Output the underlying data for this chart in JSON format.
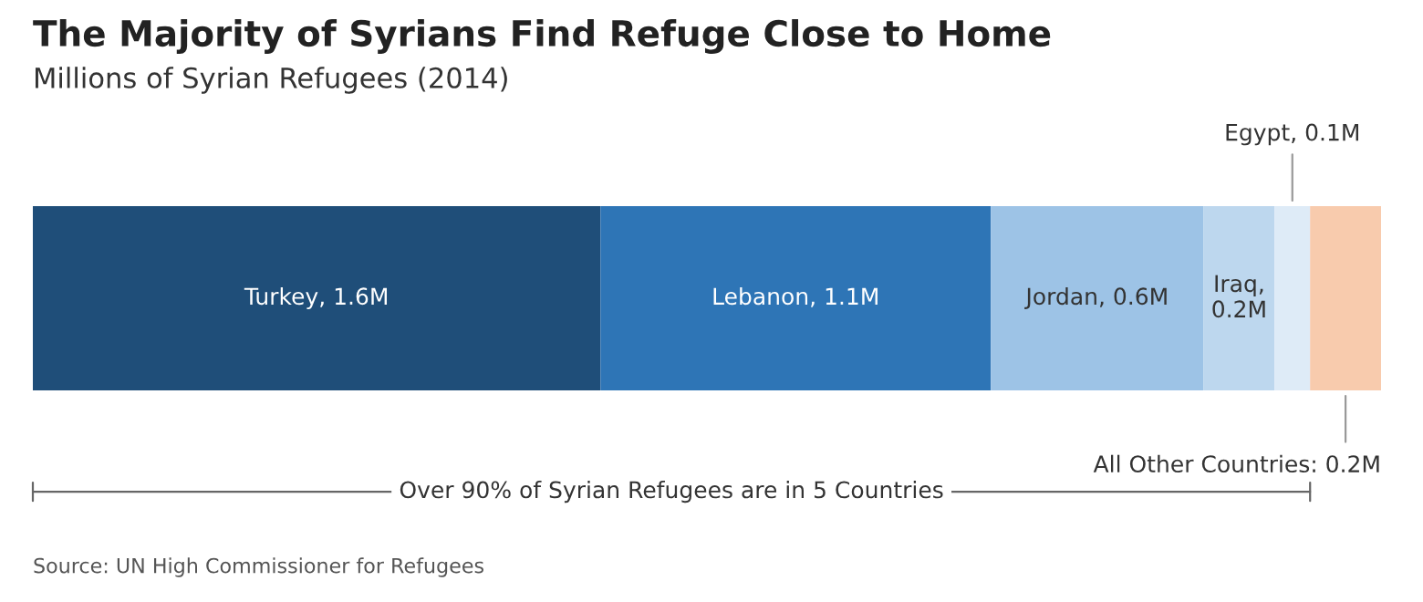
{
  "chart_data": {
    "type": "bar",
    "orientation": "horizontal",
    "stacked": true,
    "title": "The Majority of Syrians Find Refuge Close to Home",
    "subtitle": "Millions of Syrian Refugees (2014)",
    "categories": [
      null
    ],
    "series": [
      {
        "color": "#1f4e79",
        "values": [
          1.6
        ],
        "value_labels": [
          "Turkey, 1.6M"
        ]
      },
      {
        "color": "#2e75b6",
        "values": [
          1.1
        ],
        "value_labels": [
          "Lebanon, 1.1M"
        ]
      },
      {
        "color": "#9dc3e6",
        "values": [
          0.6
        ],
        "value_labels": [
          "Jordan, 0.6M"
        ]
      },
      {
        "color": "#bdd7ee",
        "values": [
          0.2
        ],
        "value_labels": [
          "Iraq, 0.2M"
        ]
      },
      {
        "color": "#deebf7",
        "values": [
          0.1
        ],
        "value_labels": [
          "Egypt, 0.1M"
        ]
      },
      {
        "color": "#f8cbad",
        "values": [
          0.2
        ],
        "value_labels": [
          "All Other Countries: 0.2M"
        ]
      }
    ],
    "annotations": [
      "Over 90% of Syrian Refugees are in 5 Countries",
      "Source: UN High Commissioner for Refugees"
    ],
    "legend": false
  }
}
